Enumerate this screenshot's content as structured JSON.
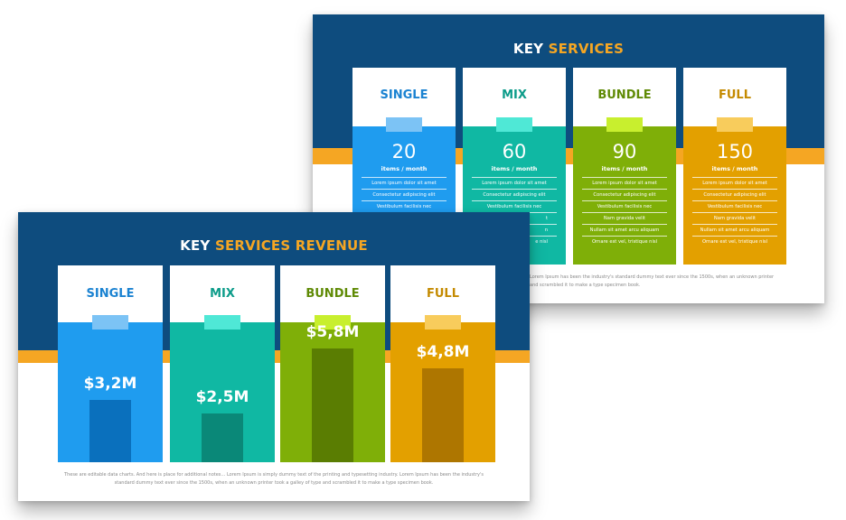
{
  "back_slide": {
    "title_main": "KEY",
    "title_accent": "SERVICES",
    "cards": [
      {
        "name": "SINGLE",
        "count": "20",
        "unit": "items / month",
        "features": [
          "Lorem ipsum dolor sit amet",
          "Consectetur adipiscing elit",
          "Vestibulum facilisis nec"
        ]
      },
      {
        "name": "MIX",
        "count": "60",
        "unit": "items / month",
        "features": [
          "Lorem ipsum dolor sit amet",
          "Consectetur adipiscing elit",
          "Vestibulum facilisis nec"
        ]
      },
      {
        "name": "BUNDLE",
        "count": "90",
        "unit": "items / month",
        "features": [
          "Lorem ipsum dolor sit amet",
          "Consectetur adipiscing elit",
          "Vestibulum facilisis nec",
          "Nam gravida velit",
          "Nullam sit amet arcu aliquam",
          "Ornare est vel, tristique nisl"
        ]
      },
      {
        "name": "FULL",
        "count": "150",
        "unit": "items / month",
        "features": [
          "Lorem ipsum dolor sit amet",
          "Consectetur adipiscing elit",
          "Vestibulum facilisis nec",
          "Nam gravida velit",
          "Nullam sit amet arcu aliquam",
          "Ornare est vel, tristique nisl"
        ]
      }
    ],
    "mix_extra_fragments": [
      "t",
      "n",
      "e nisl"
    ],
    "note_line_1": "Lorem Ipsum has been the industry's standard dummy text ever since the 1500s, when an unknown printer",
    "note_line_2": "and scrambled it to make a type specimen book."
  },
  "front_slide": {
    "title_main": "KEY",
    "title_accent": "SERVICES REVENUE",
    "note_line_1": "These are editable data charts. And here is place for additional notes… Lorem Ipsum is simply dummy text of the printing and typesetting industry. Lorem Ipsum has been the industry's",
    "note_line_2": "standard dummy text ever since the 1500s, when an unknown printer took a galley of type and scrambled it to make a type specimen book."
  },
  "chart_data": {
    "type": "bar",
    "categories": [
      "SINGLE",
      "MIX",
      "BUNDLE",
      "FULL"
    ],
    "values": [
      3.2,
      2.5,
      5.8,
      4.8
    ],
    "value_labels": [
      "$3,2M",
      "$2,5M",
      "$5,8M",
      "$4,8M"
    ],
    "title": "KEY SERVICES REVENUE"
  },
  "colors": {
    "band": "#0e4c7e",
    "accent_orange": "#f5a623",
    "single": "#1f9cef",
    "single_tab": "#7cc3f5",
    "single_bar": "#0a70bd",
    "mix": "#10b8a3",
    "mix_tab": "#4fe8d6",
    "mix_bar": "#0a8878",
    "bundle": "#7faf08",
    "bundle_tab": "#c8ef2e",
    "bundle_bar": "#5a7d02",
    "full": "#e3a000",
    "full_tab": "#f8cc5c",
    "full_bar": "#ae7600"
  }
}
